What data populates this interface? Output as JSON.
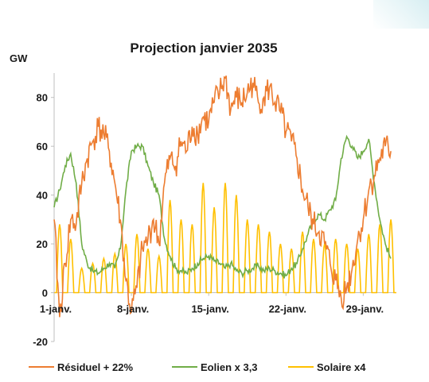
{
  "chart_data": {
    "type": "line",
    "title": "Projection janvier 2035",
    "ylabel": "GW",
    "xlabel": "",
    "ylim": [
      -20,
      90
    ],
    "yticks": [
      -20,
      0,
      20,
      40,
      60,
      80
    ],
    "xticks": [
      {
        "day": 1,
        "label": "1-janv."
      },
      {
        "day": 8,
        "label": "8-janv."
      },
      {
        "day": 15,
        "label": "15-janv."
      },
      {
        "day": 22,
        "label": "22-janv."
      },
      {
        "day": 29,
        "label": "29-janv."
      }
    ],
    "xlim": [
      1,
      32
    ],
    "grid": false,
    "legend_position": "bottom",
    "series": [
      {
        "name": "Résiduel + 22%",
        "color": "#ed7d31",
        "points": [
          [
            1,
            30
          ],
          [
            1.5,
            -10
          ],
          [
            2,
            12
          ],
          [
            2.5,
            30
          ],
          [
            3,
            28
          ],
          [
            3.5,
            45
          ],
          [
            4,
            55
          ],
          [
            4.5,
            62
          ],
          [
            5,
            68
          ],
          [
            5.5,
            65
          ],
          [
            6,
            58
          ],
          [
            6.5,
            45
          ],
          [
            7,
            30
          ],
          [
            7.5,
            5
          ],
          [
            8,
            -8
          ],
          [
            8.5,
            2
          ],
          [
            9,
            18
          ],
          [
            9.5,
            22
          ],
          [
            10,
            30
          ],
          [
            10.5,
            20
          ],
          [
            11,
            45
          ],
          [
            11.5,
            55
          ],
          [
            12,
            52
          ],
          [
            12.5,
            62
          ],
          [
            13,
            58
          ],
          [
            13.5,
            68
          ],
          [
            14,
            65
          ],
          [
            14.5,
            72
          ],
          [
            15,
            70
          ],
          [
            15.5,
            78
          ],
          [
            16,
            82
          ],
          [
            16.5,
            88
          ],
          [
            17,
            75
          ],
          [
            17.5,
            80
          ],
          [
            18,
            78
          ],
          [
            18.5,
            82
          ],
          [
            19,
            86
          ],
          [
            19.5,
            78
          ],
          [
            20,
            80
          ],
          [
            20.5,
            84
          ],
          [
            21,
            78
          ],
          [
            21.5,
            74
          ],
          [
            22,
            66
          ],
          [
            22.5,
            62
          ],
          [
            23,
            55
          ],
          [
            23.5,
            42
          ],
          [
            24,
            35
          ],
          [
            24.5,
            28
          ],
          [
            25,
            25
          ],
          [
            25.5,
            20
          ],
          [
            26,
            12
          ],
          [
            26.5,
            5
          ],
          [
            27,
            -2
          ],
          [
            27.5,
            2
          ],
          [
            28,
            10
          ],
          [
            28.5,
            22
          ],
          [
            29,
            30
          ],
          [
            29.5,
            42
          ],
          [
            30,
            48
          ],
          [
            30.5,
            55
          ],
          [
            31,
            60
          ],
          [
            31.5,
            58
          ]
        ]
      },
      {
        "name": "Eolien x 3,3",
        "color": "#70ad47",
        "points": [
          [
            1,
            35
          ],
          [
            1.5,
            42
          ],
          [
            2,
            52
          ],
          [
            2.5,
            57
          ],
          [
            3,
            45
          ],
          [
            3.5,
            20
          ],
          [
            4,
            12
          ],
          [
            4.5,
            9
          ],
          [
            5,
            8
          ],
          [
            5.5,
            10
          ],
          [
            6,
            12
          ],
          [
            6.5,
            10
          ],
          [
            7,
            18
          ],
          [
            7.5,
            42
          ],
          [
            8,
            58
          ],
          [
            8.5,
            60
          ],
          [
            9,
            60
          ],
          [
            9.5,
            52
          ],
          [
            10,
            45
          ],
          [
            10.5,
            40
          ],
          [
            11,
            22
          ],
          [
            11.5,
            15
          ],
          [
            12,
            10
          ],
          [
            12.5,
            9
          ],
          [
            13,
            8
          ],
          [
            13.5,
            10
          ],
          [
            14,
            12
          ],
          [
            14.5,
            14
          ],
          [
            15,
            15
          ],
          [
            15.5,
            13
          ],
          [
            16,
            12
          ],
          [
            16.5,
            10
          ],
          [
            17,
            12
          ],
          [
            17.5,
            9
          ],
          [
            18,
            8
          ],
          [
            18.5,
            9
          ],
          [
            19,
            10
          ],
          [
            19.5,
            11
          ],
          [
            20,
            9
          ],
          [
            20.5,
            10
          ],
          [
            21,
            9
          ],
          [
            21.5,
            8
          ],
          [
            22,
            7
          ],
          [
            22.5,
            10
          ],
          [
            23,
            12
          ],
          [
            23.5,
            18
          ],
          [
            24,
            24
          ],
          [
            24.5,
            30
          ],
          [
            25,
            32
          ],
          [
            25.5,
            30
          ],
          [
            26,
            34
          ],
          [
            26.5,
            38
          ],
          [
            27,
            55
          ],
          [
            27.5,
            64
          ],
          [
            28,
            60
          ],
          [
            28.5,
            55
          ],
          [
            29,
            58
          ],
          [
            29.5,
            63
          ],
          [
            30,
            45
          ],
          [
            30.5,
            30
          ],
          [
            31,
            20
          ],
          [
            31.5,
            14
          ]
        ]
      },
      {
        "name": "Solaire x4",
        "color": "#ffc000",
        "peaks": [
          [
            1,
            28
          ],
          [
            2,
            22
          ],
          [
            3,
            10
          ],
          [
            4,
            12
          ],
          [
            5,
            14
          ],
          [
            6,
            16
          ],
          [
            7,
            20
          ],
          [
            8,
            24
          ],
          [
            9,
            18
          ],
          [
            10,
            15
          ],
          [
            11,
            38
          ],
          [
            12,
            30
          ],
          [
            13,
            28
          ],
          [
            14,
            45
          ],
          [
            15,
            35
          ],
          [
            16,
            45
          ],
          [
            17,
            40
          ],
          [
            18,
            30
          ],
          [
            19,
            28
          ],
          [
            20,
            25
          ],
          [
            21,
            20
          ],
          [
            22,
            18
          ],
          [
            23,
            25
          ],
          [
            24,
            22
          ],
          [
            25,
            20
          ],
          [
            26,
            22
          ],
          [
            27,
            20
          ],
          [
            28,
            18
          ],
          [
            29,
            24
          ],
          [
            30,
            28
          ],
          [
            31,
            30
          ]
        ]
      }
    ]
  }
}
